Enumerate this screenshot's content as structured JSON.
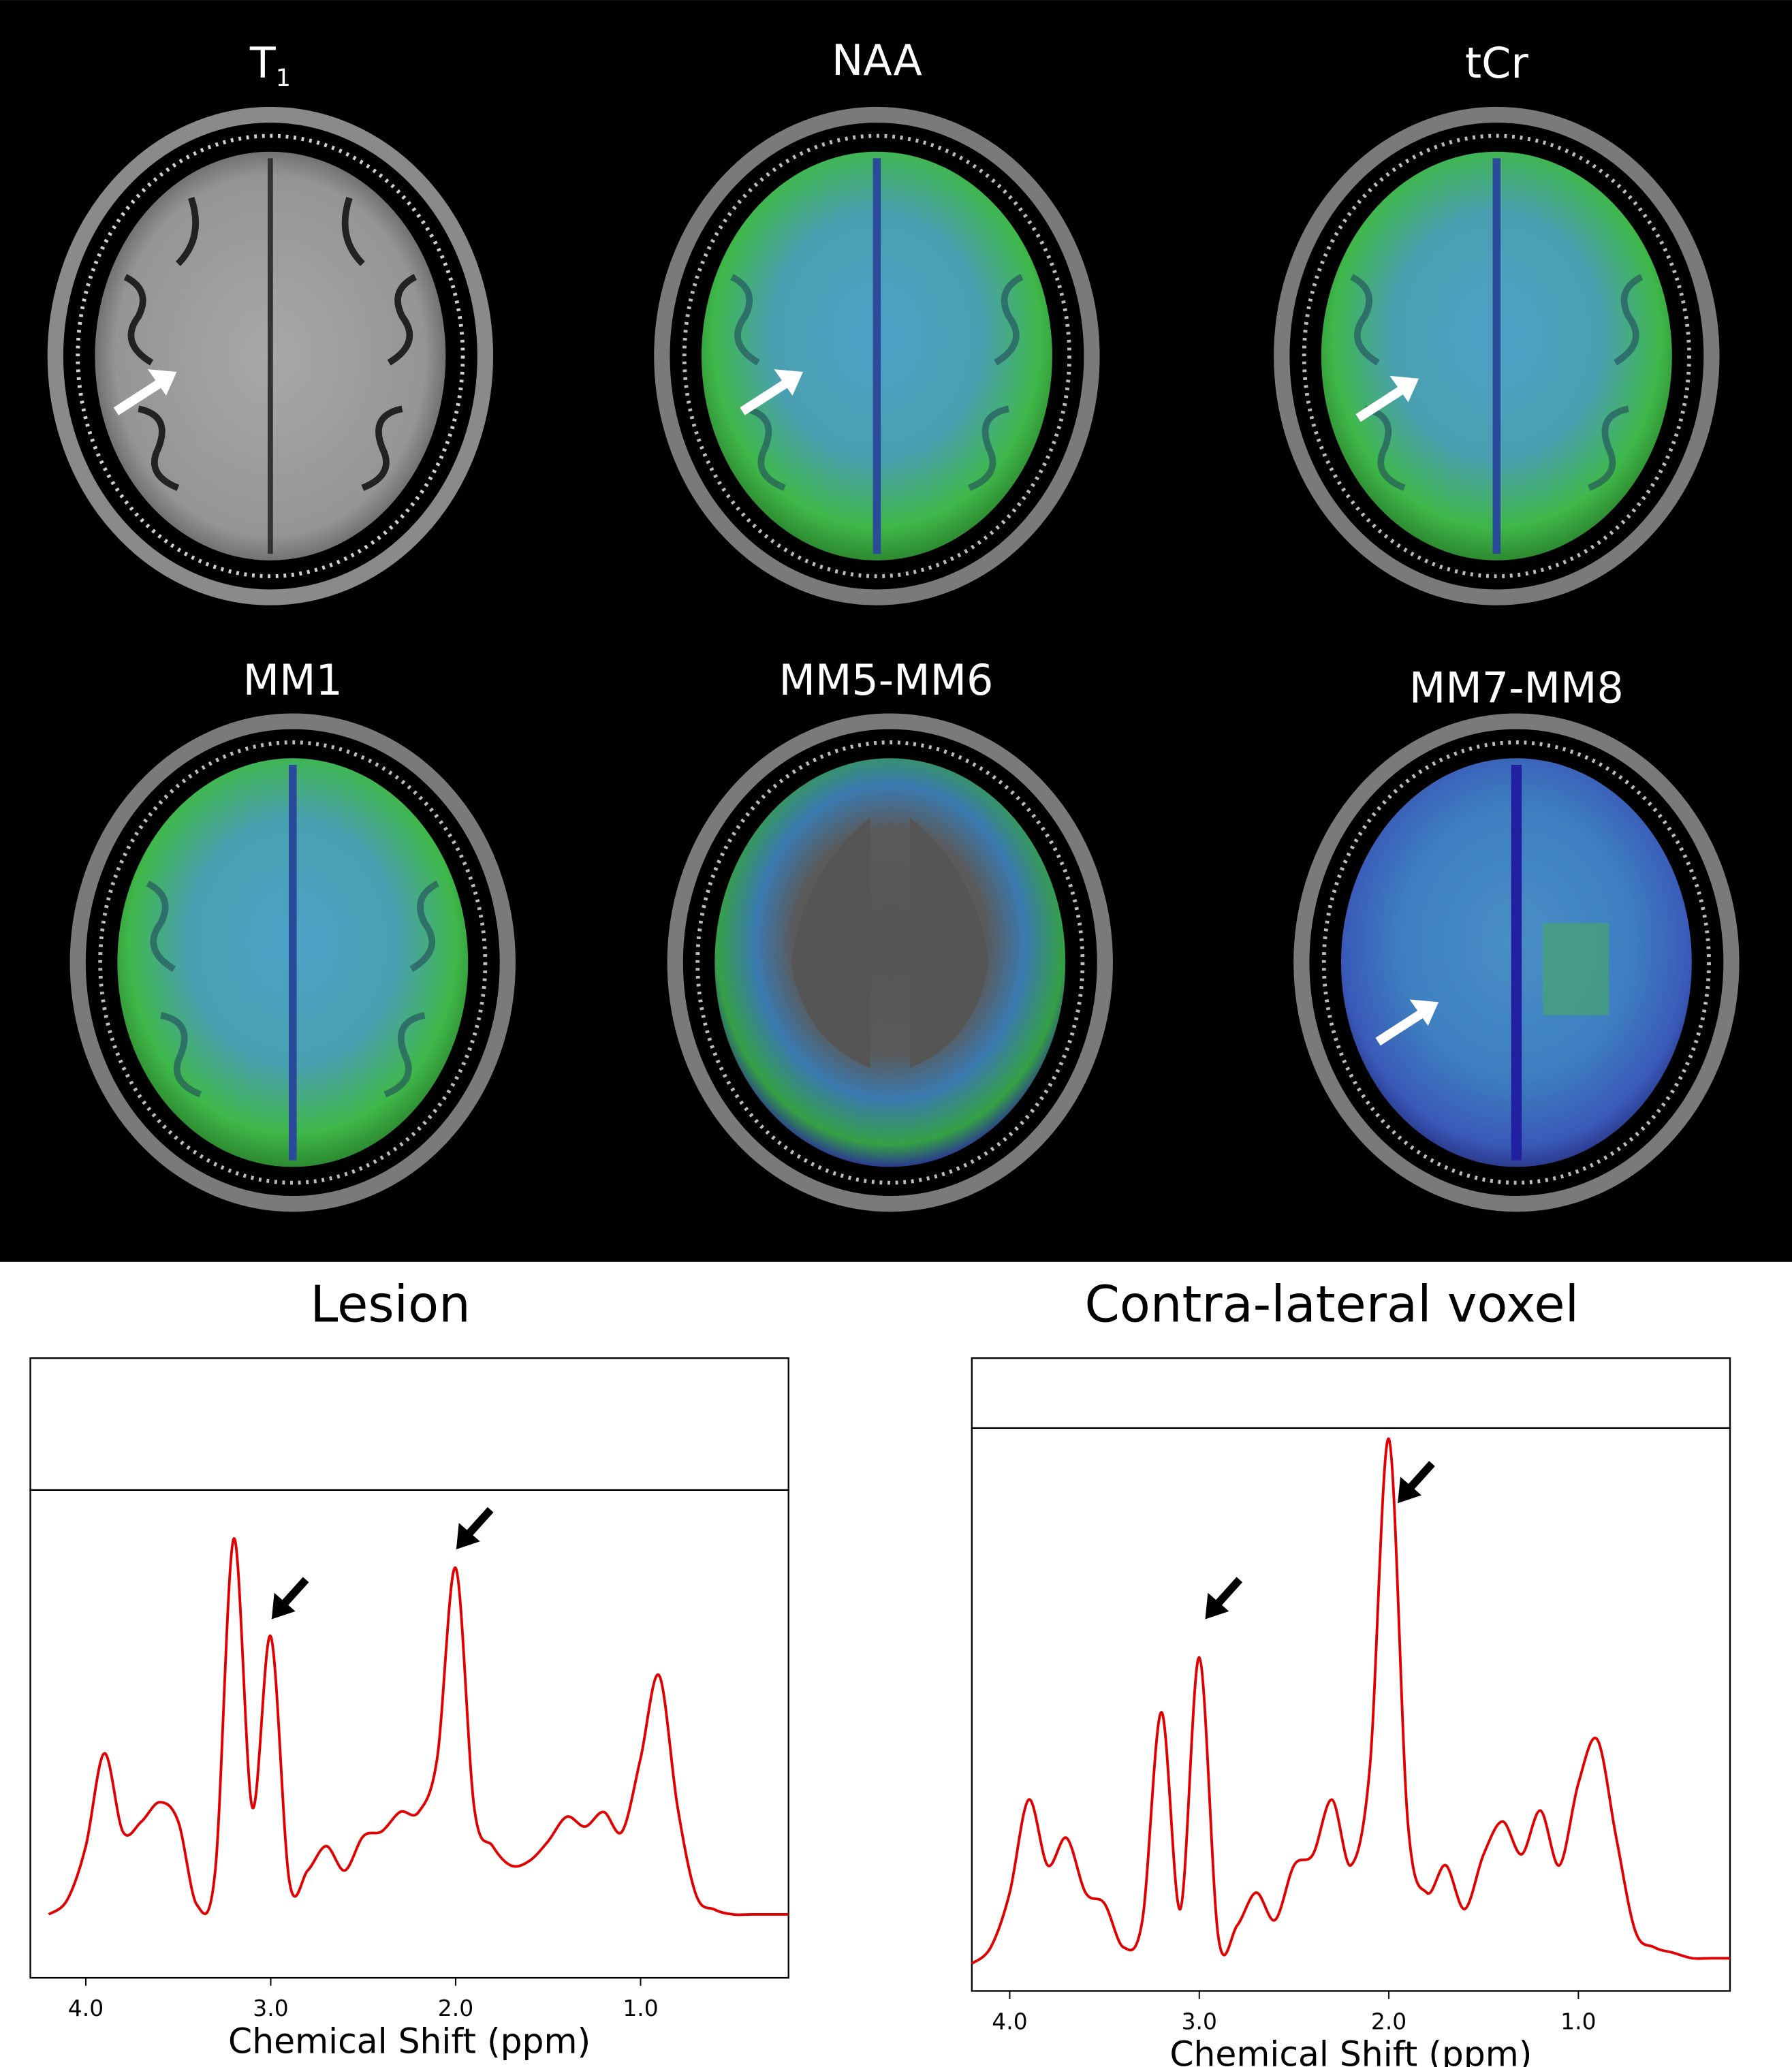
{
  "panels": [
    {
      "title": "T",
      "subscript": "1"
    },
    {
      "title": "NAA"
    },
    {
      "title": "tCr"
    },
    {
      "title": "MM1"
    },
    {
      "title": "MM5-MM6"
    },
    {
      "title": "MM7-MM8"
    }
  ],
  "chart_data": [
    {
      "type": "line",
      "title": "Lesion",
      "xlabel": "Chemical Shift (ppm)",
      "xlim": [
        4.3,
        0.2
      ],
      "xticks": [
        {
          "value": 4,
          "label": "4.0"
        },
        {
          "value": 3,
          "label": "3.0"
        },
        {
          "value": 2,
          "label": "2.0"
        },
        {
          "value": 1,
          "label": "1.0"
        }
      ],
      "ylim": [
        -10,
        90
      ],
      "x": [
        4.2,
        4.1,
        4.0,
        3.9,
        3.8,
        3.7,
        3.6,
        3.5,
        3.4,
        3.3,
        3.2,
        3.1,
        3.0,
        2.9,
        2.8,
        2.7,
        2.6,
        2.5,
        2.4,
        2.3,
        2.2,
        2.1,
        2.0,
        1.9,
        1.8,
        1.7,
        1.6,
        1.5,
        1.4,
        1.3,
        1.2,
        1.1,
        1.0,
        0.9,
        0.8,
        0.7,
        0.6,
        0.5,
        0.4,
        0.3,
        0.2
      ],
      "series": [
        {
          "color": "#e00000",
          "values": [
            3,
            6,
            17,
            36,
            20,
            22,
            26,
            22,
            5,
            12,
            80,
            25,
            60,
            10,
            12,
            17,
            12,
            19,
            20,
            24,
            24,
            35,
            74,
            25,
            17,
            13,
            14,
            18,
            23,
            21,
            24,
            20,
            35,
            52,
            25,
            7,
            4,
            3,
            3,
            3,
            3
          ]
        }
      ]
    },
    {
      "type": "line",
      "title": "Contra-lateral voxel",
      "xlabel": "Chemical Shift (ppm)",
      "xlim": [
        4.2,
        0.2
      ],
      "xticks": [
        {
          "value": 4,
          "label": "4.0"
        },
        {
          "value": 3,
          "label": "3.0"
        },
        {
          "value": 2,
          "label": "2.0"
        },
        {
          "value": 1,
          "label": "1.0"
        }
      ],
      "ylim": [
        -3,
        100
      ],
      "x": [
        4.2,
        4.1,
        4.0,
        3.9,
        3.8,
        3.7,
        3.6,
        3.5,
        3.4,
        3.3,
        3.2,
        3.1,
        3.0,
        2.9,
        2.8,
        2.7,
        2.6,
        2.5,
        2.4,
        2.3,
        2.2,
        2.1,
        2.0,
        1.9,
        1.8,
        1.7,
        1.6,
        1.5,
        1.4,
        1.3,
        1.2,
        1.1,
        1.0,
        0.9,
        0.8,
        0.7,
        0.6,
        0.5,
        0.4,
        0.3,
        0.2
      ],
      "series": [
        {
          "color": "#e00000",
          "values": [
            2,
            5,
            15,
            32,
            20,
            25,
            15,
            13,
            5,
            10,
            48,
            12,
            58,
            7,
            9,
            15,
            10,
            20,
            22,
            32,
            20,
            38,
            98,
            28,
            15,
            20,
            12,
            22,
            28,
            22,
            30,
            20,
            35,
            43,
            25,
            8,
            5,
            4,
            3,
            3,
            3
          ]
        }
      ]
    }
  ]
}
